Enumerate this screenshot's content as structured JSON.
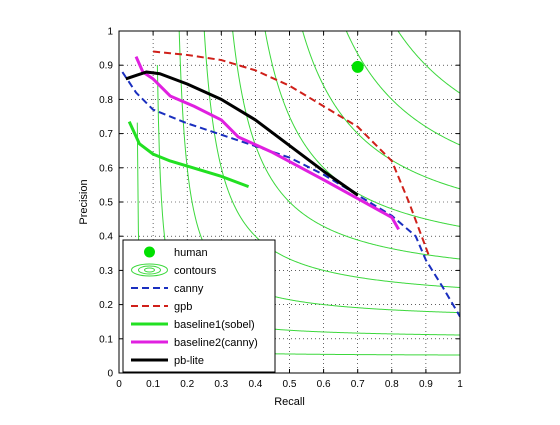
{
  "chart_data": {
    "type": "line",
    "xlabel": "Recall",
    "ylabel": "Precision",
    "xlim": [
      0,
      1
    ],
    "ylim": [
      0,
      1
    ],
    "grid": true,
    "legend_position": "bottom-left",
    "x_ticks": [
      0,
      0.1,
      0.2,
      0.3,
      0.4,
      0.5,
      0.6,
      0.7,
      0.8,
      0.9,
      1
    ],
    "y_ticks": [
      0,
      0.1,
      0.2,
      0.3,
      0.4,
      0.5,
      0.6,
      0.7,
      0.8,
      0.9,
      1
    ],
    "x_tick_labels": [
      "0",
      "0.1",
      "0.2",
      "0.3",
      "0.4",
      "0.5",
      "0.6",
      "0.7",
      "0.8",
      "0.9",
      "1"
    ],
    "y_tick_labels": [
      "0",
      "0.1",
      "0.2",
      "0.3",
      "0.4",
      "0.5",
      "0.6",
      "0.7",
      "0.8",
      "0.9",
      "1"
    ],
    "contours": {
      "color": "#3cd83c",
      "f_values": [
        0.1,
        0.2,
        0.3,
        0.4,
        0.5,
        0.6,
        0.7,
        0.8,
        0.9
      ]
    },
    "human_point": {
      "name": "human",
      "x": 0.7,
      "y": 0.895,
      "color": "#00e000"
    },
    "series": [
      {
        "name": "canny",
        "color": "#1a2fbf",
        "dash": "dash",
        "width": 2,
        "points": [
          [
            0.01,
            0.88
          ],
          [
            0.05,
            0.82
          ],
          [
            0.1,
            0.77
          ],
          [
            0.2,
            0.73
          ],
          [
            0.35,
            0.68
          ],
          [
            0.5,
            0.63
          ],
          [
            0.6,
            0.58
          ],
          [
            0.7,
            0.52
          ],
          [
            0.8,
            0.46
          ],
          [
            0.87,
            0.4
          ],
          [
            0.9,
            0.33
          ],
          [
            0.95,
            0.25
          ],
          [
            1.0,
            0.165
          ]
        ]
      },
      {
        "name": "gpb",
        "color": "#d0201a",
        "dash": "dash",
        "width": 2,
        "points": [
          [
            0.1,
            0.94
          ],
          [
            0.15,
            0.935
          ],
          [
            0.2,
            0.93
          ],
          [
            0.3,
            0.915
          ],
          [
            0.4,
            0.885
          ],
          [
            0.5,
            0.84
          ],
          [
            0.6,
            0.78
          ],
          [
            0.7,
            0.72
          ],
          [
            0.8,
            0.62
          ],
          [
            0.85,
            0.5
          ],
          [
            0.88,
            0.42
          ],
          [
            0.91,
            0.34
          ]
        ]
      },
      {
        "name": "baseline1(sobel)",
        "color": "#22e022",
        "dash": "solid",
        "width": 3,
        "points": [
          [
            0.03,
            0.735
          ],
          [
            0.06,
            0.67
          ],
          [
            0.1,
            0.64
          ],
          [
            0.15,
            0.62
          ],
          [
            0.2,
            0.605
          ],
          [
            0.3,
            0.575
          ],
          [
            0.38,
            0.545
          ]
        ]
      },
      {
        "name": "baseline2(canny)",
        "color": "#e020e0",
        "dash": "solid",
        "width": 3,
        "points": [
          [
            0.05,
            0.925
          ],
          [
            0.07,
            0.88
          ],
          [
            0.1,
            0.86
          ],
          [
            0.15,
            0.81
          ],
          [
            0.22,
            0.78
          ],
          [
            0.3,
            0.74
          ],
          [
            0.35,
            0.69
          ],
          [
            0.45,
            0.645
          ],
          [
            0.6,
            0.565
          ],
          [
            0.7,
            0.51
          ],
          [
            0.8,
            0.455
          ],
          [
            0.82,
            0.42
          ]
        ]
      },
      {
        "name": "pb-lite",
        "color": "#000000",
        "dash": "solid",
        "width": 3,
        "points": [
          [
            0.02,
            0.86
          ],
          [
            0.05,
            0.87
          ],
          [
            0.08,
            0.88
          ],
          [
            0.12,
            0.875
          ],
          [
            0.2,
            0.845
          ],
          [
            0.3,
            0.8
          ],
          [
            0.4,
            0.74
          ],
          [
            0.5,
            0.665
          ],
          [
            0.6,
            0.59
          ],
          [
            0.7,
            0.52
          ]
        ]
      }
    ],
    "legend": [
      {
        "label": "human",
        "kind": "marker",
        "color": "#00e000"
      },
      {
        "label": "contours",
        "kind": "contour",
        "color": "#3cd83c"
      },
      {
        "label": "canny",
        "kind": "line",
        "color": "#1a2fbf",
        "dash": "dash"
      },
      {
        "label": "gpb",
        "kind": "line",
        "color": "#d0201a",
        "dash": "dash"
      },
      {
        "label": "baseline1(sobel)",
        "kind": "line",
        "color": "#22e022",
        "dash": "solid"
      },
      {
        "label": "baseline2(canny)",
        "kind": "line",
        "color": "#e020e0",
        "dash": "solid"
      },
      {
        "label": "pb-lite",
        "kind": "line",
        "color": "#000000",
        "dash": "solid"
      }
    ]
  }
}
